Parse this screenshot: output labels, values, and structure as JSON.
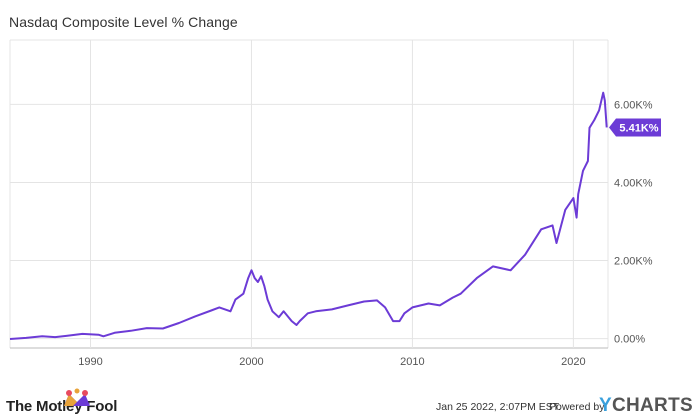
{
  "header": {
    "title": "Nasdaq Composite Level % Change"
  },
  "footer": {
    "date": "Jan 25 2022, 2:07PM EST.",
    "powered_by": "Powered by",
    "ycharts_y": "Y",
    "ycharts_rest": "CHARTS",
    "brand": "The Motley Fool"
  },
  "colors": {
    "line": "#6c3bd6",
    "grid": "#e4e4e4",
    "axis": "#bbbbbb"
  },
  "chart_data": {
    "type": "line",
    "title": "Nasdaq Composite Level % Change",
    "xlabel": "",
    "ylabel": "",
    "xlim": [
      1985.0,
      2022.15
    ],
    "ylim": [
      -240,
      7650
    ],
    "x_ticks": [
      1990,
      2000,
      2010,
      2020
    ],
    "x_tick_labels": [
      "1990",
      "2000",
      "2010",
      "2020"
    ],
    "y_ticks": [
      0,
      2000,
      4000,
      6000
    ],
    "y_tick_labels": [
      "0.00%",
      "2.00K%",
      "4.00K%",
      "6.00K%"
    ],
    "grid": true,
    "last_value_label": "5.41K%",
    "last_value": 5410,
    "series": [
      {
        "x": [
          1985.0,
          1986.0,
          1987.0,
          1987.8,
          1988.5,
          1989.5,
          1990.5,
          1990.8,
          1991.5,
          1992.5,
          1993.5,
          1994.5,
          1995.5,
          1996.5,
          1997.5,
          1998.0,
          1998.7,
          1999.0,
          1999.5,
          1999.8,
          2000.0,
          2000.2,
          2000.4,
          2000.6,
          2000.8,
          2001.0,
          2001.3,
          2001.7,
          2002.0,
          2002.5,
          2002.8,
          2003.0,
          2003.5,
          2004.0,
          2005.0,
          2006.0,
          2007.0,
          2007.8,
          2008.3,
          2008.8,
          2009.2,
          2009.5,
          2010.0,
          2011.0,
          2011.7,
          2012.5,
          2013.0,
          2014.0,
          2015.0,
          2016.1,
          2017.0,
          2018.0,
          2018.7,
          2018.95,
          2019.5,
          2020.0,
          2020.2,
          2020.3,
          2020.6,
          2020.9,
          2021.0,
          2021.3,
          2021.6,
          2021.85,
          2021.95,
          2022.07
        ],
        "y": [
          -10,
          20,
          60,
          40,
          70,
          120,
          100,
          60,
          150,
          200,
          270,
          260,
          400,
          570,
          720,
          800,
          700,
          1000,
          1150,
          1550,
          1750,
          1550,
          1450,
          1600,
          1350,
          1000,
          700,
          550,
          700,
          450,
          350,
          450,
          650,
          700,
          750,
          850,
          950,
          980,
          800,
          450,
          450,
          650,
          800,
          900,
          850,
          1050,
          1150,
          1550,
          1850,
          1750,
          2150,
          2800,
          2900,
          2450,
          3300,
          3600,
          3100,
          3700,
          4300,
          4550,
          5400,
          5600,
          5850,
          6300,
          6100,
          5410
        ]
      }
    ]
  }
}
